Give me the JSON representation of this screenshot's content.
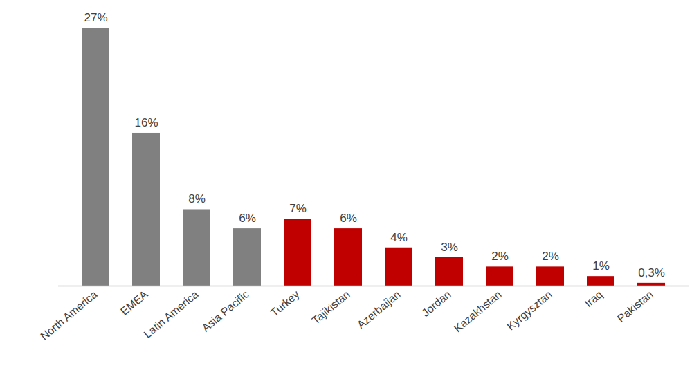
{
  "chart_data": {
    "type": "bar",
    "categories": [
      "North America",
      "EMEA",
      "Latin America",
      "Asia Pacific",
      "Turkey",
      "Tajikistan",
      "Azerbaijan",
      "Jordan",
      "Kazakhstan",
      "Kyrgysztan",
      "Iraq",
      "Pakistan"
    ],
    "values": [
      27,
      16,
      8,
      6,
      7,
      6,
      4,
      3,
      2,
      2,
      1,
      0.3
    ],
    "value_labels": [
      "27%",
      "16%",
      "8%",
      "6%",
      "7%",
      "6%",
      "4%",
      "3%",
      "2%",
      "2%",
      "1%",
      "0,3%"
    ],
    "colors": [
      "#808080",
      "#808080",
      "#808080",
      "#808080",
      "#c00000",
      "#c00000",
      "#c00000",
      "#c00000",
      "#c00000",
      "#c00000",
      "#c00000",
      "#c00000"
    ],
    "ylim": [
      0,
      27
    ],
    "data_labels": true,
    "tick_labels": "x"
  }
}
